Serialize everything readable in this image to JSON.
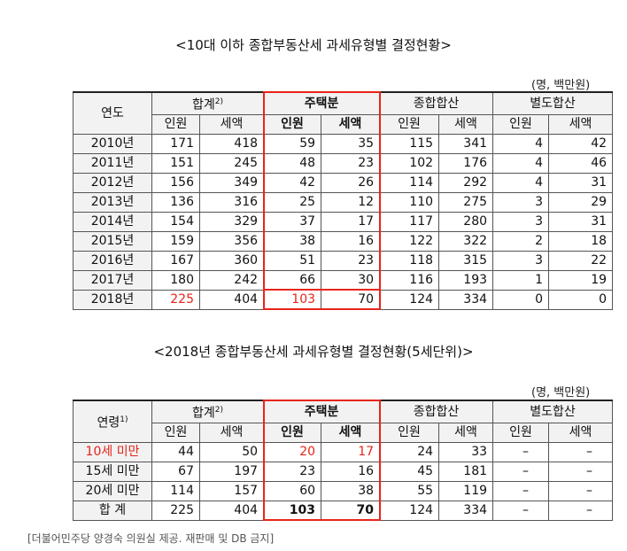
{
  "table1": {
    "title": "<10대 이하 종합부동산세 과세유형별 결정현황>",
    "unit": "(명, 백만원)",
    "row_header": "연도",
    "groups": [
      "합계",
      "주택분",
      "종합합산",
      "별도합산"
    ],
    "total_sup": "2)",
    "sub": [
      "인원",
      "세액",
      "인원",
      "세액",
      "인원",
      "세액",
      "인원",
      "세액"
    ],
    "rows": [
      {
        "label": "2010년",
        "v": [
          "171",
          "418",
          "59",
          "35",
          "115",
          "341",
          "4",
          "42"
        ]
      },
      {
        "label": "2011년",
        "v": [
          "151",
          "245",
          "48",
          "23",
          "102",
          "176",
          "4",
          "46"
        ]
      },
      {
        "label": "2012년",
        "v": [
          "156",
          "349",
          "42",
          "26",
          "114",
          "292",
          "4",
          "31"
        ]
      },
      {
        "label": "2013년",
        "v": [
          "136",
          "316",
          "25",
          "12",
          "110",
          "275",
          "3",
          "29"
        ]
      },
      {
        "label": "2014년",
        "v": [
          "154",
          "329",
          "37",
          "17",
          "117",
          "280",
          "3",
          "31"
        ]
      },
      {
        "label": "2015년",
        "v": [
          "159",
          "356",
          "38",
          "16",
          "122",
          "322",
          "2",
          "18"
        ]
      },
      {
        "label": "2016년",
        "v": [
          "167",
          "360",
          "51",
          "23",
          "118",
          "315",
          "3",
          "22"
        ]
      },
      {
        "label": "2017년",
        "v": [
          "180",
          "242",
          "66",
          "30",
          "116",
          "193",
          "1",
          "19"
        ]
      },
      {
        "label": "2018년",
        "v": [
          "225",
          "404",
          "103",
          "70",
          "124",
          "334",
          "0",
          "0"
        ]
      }
    ]
  },
  "table2": {
    "title": "<2018년 종합부동산세 과세유형별 결정현황(5세단위)>",
    "unit": "(명, 백만원)",
    "row_header": "연령",
    "row_header_sup": "1)",
    "groups": [
      "합계",
      "주택분",
      "종합합산",
      "별도합산"
    ],
    "total_sup": "2)",
    "sub": [
      "인원",
      "세액",
      "인원",
      "세액",
      "인원",
      "세액",
      "인원",
      "세액"
    ],
    "rows": [
      {
        "label": "10세 미만",
        "v": [
          "44",
          "50",
          "20",
          "17",
          "24",
          "33",
          "–",
          "–"
        ]
      },
      {
        "label": "15세 미만",
        "v": [
          "67",
          "197",
          "23",
          "16",
          "45",
          "181",
          "–",
          "–"
        ]
      },
      {
        "label": "20세 미만",
        "v": [
          "114",
          "157",
          "60",
          "38",
          "55",
          "119",
          "–",
          "–"
        ]
      },
      {
        "label": "합 계",
        "v": [
          "225",
          "404",
          "103",
          "70",
          "124",
          "334",
          "–",
          "–"
        ]
      }
    ]
  },
  "footer": "[더불어민주당 양경숙 의원실 제공. 재판매 및 DB 금지]",
  "colors": {
    "highlight": "#e8241a",
    "header_bg": "#f2f2f2"
  }
}
